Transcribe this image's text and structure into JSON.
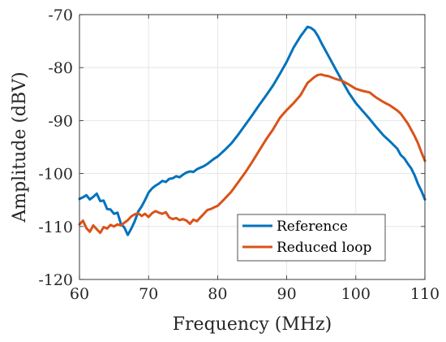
{
  "chart_data": {
    "type": "line",
    "title": "",
    "xlabel": "Frequency (MHz)",
    "ylabel": "Amplitude (dBV)",
    "xlim": [
      60,
      110
    ],
    "ylim": [
      -120,
      -70
    ],
    "xticks": [
      60,
      70,
      80,
      90,
      100,
      110
    ],
    "yticks": [
      -120,
      -110,
      -100,
      -90,
      -80,
      -70
    ],
    "xtick_labels": [
      "60",
      "70",
      "80",
      "90",
      "100",
      "110"
    ],
    "ytick_labels": [
      "-120",
      "-110",
      "-100",
      "-90",
      "-80",
      "-70"
    ],
    "grid": true,
    "legend_position": "bottom-right",
    "series": [
      {
        "name": "Reference",
        "color": "#0072BD",
        "x": [
          60,
          60.5,
          61,
          61.5,
          62,
          62.5,
          63,
          63.5,
          64,
          64.5,
          65,
          65.5,
          66,
          66.5,
          67,
          67.5,
          68,
          68.5,
          69,
          69.5,
          70,
          70.5,
          71,
          71.5,
          72,
          72.5,
          73,
          73.5,
          74,
          74.5,
          75,
          75.5,
          76,
          76.5,
          77,
          77.5,
          78,
          78.5,
          79,
          79.5,
          80,
          81,
          82,
          83,
          84,
          85,
          86,
          87,
          88,
          89,
          90,
          91,
          92,
          92.5,
          93,
          93.5,
          94,
          94.5,
          95,
          96,
          97,
          98,
          99,
          100,
          101,
          102,
          103,
          104,
          105,
          106,
          106.5,
          107,
          107.5,
          108,
          108.5,
          109,
          109.5,
          110
        ],
        "y": [
          -104.8,
          -104.5,
          -104.1,
          -104.9,
          -104.4,
          -103.8,
          -105.2,
          -105.1,
          -106.7,
          -106.8,
          -107.6,
          -107.4,
          -109.5,
          -110.2,
          -111.6,
          -110.4,
          -109.0,
          -107.2,
          -106.2,
          -105.0,
          -103.6,
          -102.8,
          -102.3,
          -101.9,
          -101.4,
          -101.6,
          -101.0,
          -100.9,
          -100.5,
          -100.7,
          -100.2,
          -99.8,
          -99.6,
          -99.7,
          -99.2,
          -98.9,
          -98.6,
          -98.2,
          -97.7,
          -97.2,
          -96.8,
          -95.6,
          -94.3,
          -92.6,
          -90.8,
          -89.0,
          -87.1,
          -85.3,
          -83.4,
          -81.2,
          -78.9,
          -76.2,
          -74.1,
          -73.2,
          -72.3,
          -72.5,
          -73.0,
          -74.0,
          -75.3,
          -77.7,
          -80.1,
          -82.5,
          -84.8,
          -86.7,
          -88.2,
          -89.7,
          -91.3,
          -92.8,
          -94.0,
          -95.3,
          -96.5,
          -97.1,
          -98.1,
          -99.0,
          -100.3,
          -102.0,
          -103.3,
          -104.9
        ]
      },
      {
        "name": "Reduced loop",
        "color": "#D95319",
        "x": [
          60,
          60.5,
          61,
          61.5,
          62,
          62.5,
          63,
          63.5,
          64,
          64.5,
          65,
          65.5,
          66,
          66.5,
          67,
          67.5,
          68,
          68.5,
          69,
          69.5,
          70,
          70.5,
          71,
          71.5,
          72,
          72.5,
          73,
          73.5,
          74,
          74.5,
          75,
          75.5,
          76,
          76.5,
          77,
          77.5,
          78,
          78.5,
          79,
          79.5,
          80,
          81,
          82,
          83,
          84,
          85,
          86,
          87,
          88,
          89,
          90,
          91,
          92,
          93,
          94,
          94.5,
          95,
          95.5,
          96,
          97,
          98,
          99,
          100,
          101,
          102,
          103,
          104,
          105,
          106,
          106.5,
          107,
          107.5,
          108,
          108.5,
          109,
          109.5,
          110
        ],
        "y": [
          -109.6,
          -108.9,
          -110.3,
          -111.0,
          -109.8,
          -110.5,
          -111.2,
          -110.1,
          -110.4,
          -109.7,
          -110.0,
          -109.6,
          -109.8,
          -109.3,
          -108.8,
          -108.1,
          -107.7,
          -107.5,
          -108.0,
          -107.6,
          -108.2,
          -107.5,
          -107.1,
          -107.4,
          -107.6,
          -107.3,
          -108.3,
          -108.6,
          -108.4,
          -108.8,
          -108.6,
          -108.9,
          -109.5,
          -108.7,
          -109.0,
          -108.3,
          -107.6,
          -106.9,
          -106.7,
          -106.4,
          -106.1,
          -104.8,
          -103.4,
          -101.6,
          -99.8,
          -97.8,
          -95.7,
          -93.6,
          -91.7,
          -89.5,
          -88.0,
          -86.7,
          -85.2,
          -82.9,
          -81.8,
          -81.4,
          -81.3,
          -81.5,
          -81.6,
          -82.1,
          -82.5,
          -83.2,
          -84.0,
          -84.4,
          -84.7,
          -85.7,
          -86.5,
          -87.2,
          -88.1,
          -88.7,
          -89.6,
          -90.5,
          -91.7,
          -92.9,
          -94.3,
          -96.0,
          -97.6
        ]
      }
    ]
  }
}
